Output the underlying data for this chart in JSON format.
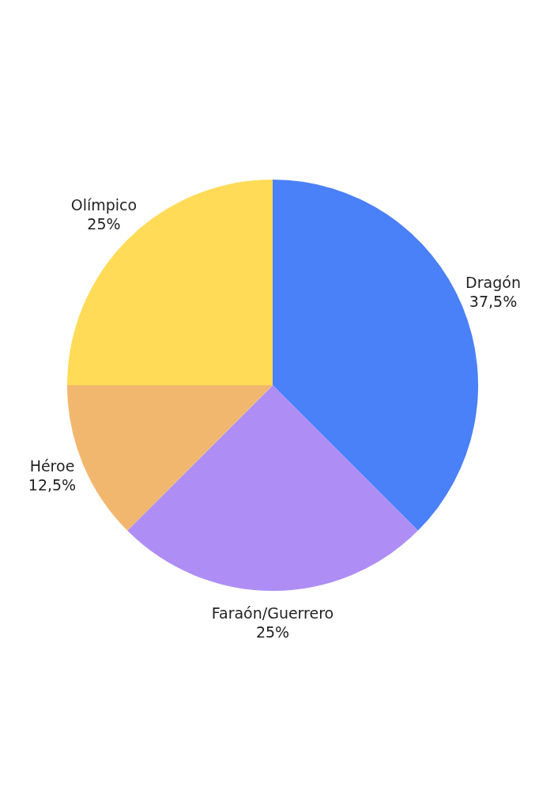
{
  "chart_data": {
    "type": "pie",
    "categories": [
      "Dragón",
      "Faraón/Guerrero",
      "Héroe",
      "Olímpico"
    ],
    "values": [
      37.5,
      25,
      12.5,
      25
    ],
    "value_labels": [
      "37,5%",
      "25%",
      "12,5%",
      "25%"
    ],
    "colors": [
      "#4a80f8",
      "#ae8ef5",
      "#f2b76e",
      "#ffdb58"
    ]
  }
}
